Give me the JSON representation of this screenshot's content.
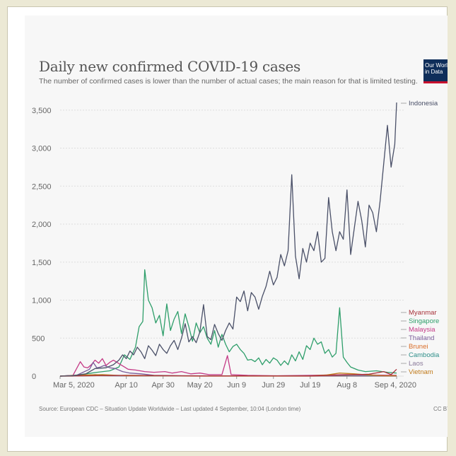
{
  "logo_text": [
    "Our World",
    "in Data"
  ],
  "source_text": "Source: European CDC – Situation Update Worldwide – Last updated 4 September, 10:04 (London time)",
  "license_text": "CC BY",
  "colors": {
    "page_background": "#ece9d5",
    "chart_background": "#f7f7f7",
    "gridline": "#dddddd",
    "logo_background": "#0f2e5a",
    "logo_underline": "#c8102e"
  },
  "chart_data": {
    "type": "line",
    "title": "Daily new confirmed COVID-19 cases",
    "subtitle": "The number of confirmed cases is lower than the number of actual cases; the main reason for that is limited testing.",
    "xlabel": "",
    "ylabel": "",
    "x_range": [
      "2020-03-05",
      "2020-09-04"
    ],
    "ylim": [
      0,
      3600
    ],
    "y_ticks": [
      0,
      500,
      1000,
      1500,
      2000,
      2500,
      3000,
      3500
    ],
    "y_tick_labels": [
      "0",
      "500",
      "1,000",
      "1,500",
      "2,000",
      "2,500",
      "3,000",
      "3,500"
    ],
    "x_ticks": [
      "2020-03-05",
      "2020-04-10",
      "2020-04-30",
      "2020-05-20",
      "2020-06-09",
      "2020-06-29",
      "2020-07-19",
      "2020-08-08",
      "2020-09-04"
    ],
    "x_tick_labels": [
      "Mar 5, 2020",
      "Apr 10",
      "Apr 30",
      "May 20",
      "Jun 9",
      "Jun 29",
      "Jul 19",
      "Aug 8",
      "Sep 4, 2020"
    ],
    "grid": true,
    "legend": "right, labels at line ends",
    "series": [
      {
        "name": "Indonesia",
        "color": "#4a5068",
        "points": [
          [
            "2020-03-05",
            0
          ],
          [
            "2020-03-12",
            5
          ],
          [
            "2020-03-19",
            30
          ],
          [
            "2020-03-24",
            100
          ],
          [
            "2020-03-30",
            110
          ],
          [
            "2020-04-03",
            150
          ],
          [
            "2020-04-06",
            210
          ],
          [
            "2020-04-08",
            280
          ],
          [
            "2020-04-10",
            230
          ],
          [
            "2020-04-12",
            330
          ],
          [
            "2020-04-14",
            280
          ],
          [
            "2020-04-16",
            380
          ],
          [
            "2020-04-18",
            320
          ],
          [
            "2020-04-20",
            230
          ],
          [
            "2020-04-22",
            400
          ],
          [
            "2020-04-24",
            340
          ],
          [
            "2020-04-26",
            270
          ],
          [
            "2020-04-28",
            420
          ],
          [
            "2020-04-30",
            350
          ],
          [
            "2020-05-02",
            300
          ],
          [
            "2020-05-04",
            400
          ],
          [
            "2020-05-06",
            470
          ],
          [
            "2020-05-08",
            350
          ],
          [
            "2020-05-10",
            500
          ],
          [
            "2020-05-12",
            690
          ],
          [
            "2020-05-14",
            450
          ],
          [
            "2020-05-16",
            520
          ],
          [
            "2020-05-18",
            440
          ],
          [
            "2020-05-20",
            580
          ],
          [
            "2020-05-22",
            940
          ],
          [
            "2020-05-24",
            520
          ],
          [
            "2020-05-26",
            480
          ],
          [
            "2020-05-28",
            680
          ],
          [
            "2020-05-30",
            560
          ],
          [
            "2020-06-01",
            470
          ],
          [
            "2020-06-03",
            600
          ],
          [
            "2020-06-05",
            700
          ],
          [
            "2020-06-07",
            620
          ],
          [
            "2020-06-09",
            1040
          ],
          [
            "2020-06-11",
            980
          ],
          [
            "2020-06-13",
            1120
          ],
          [
            "2020-06-15",
            860
          ],
          [
            "2020-06-17",
            1100
          ],
          [
            "2020-06-19",
            1040
          ],
          [
            "2020-06-21",
            880
          ],
          [
            "2020-06-23",
            1050
          ],
          [
            "2020-06-25",
            1180
          ],
          [
            "2020-06-27",
            1380
          ],
          [
            "2020-06-29",
            1200
          ],
          [
            "2020-07-01",
            1300
          ],
          [
            "2020-07-03",
            1600
          ],
          [
            "2020-07-05",
            1450
          ],
          [
            "2020-07-07",
            1650
          ],
          [
            "2020-07-09",
            2650
          ],
          [
            "2020-07-11",
            1580
          ],
          [
            "2020-07-13",
            1280
          ],
          [
            "2020-07-15",
            1680
          ],
          [
            "2020-07-17",
            1500
          ],
          [
            "2020-07-19",
            1750
          ],
          [
            "2020-07-21",
            1650
          ],
          [
            "2020-07-23",
            1900
          ],
          [
            "2020-07-25",
            1500
          ],
          [
            "2020-07-27",
            1550
          ],
          [
            "2020-07-29",
            2350
          ],
          [
            "2020-07-31",
            1900
          ],
          [
            "2020-08-02",
            1650
          ],
          [
            "2020-08-04",
            1900
          ],
          [
            "2020-08-06",
            1800
          ],
          [
            "2020-08-08",
            2450
          ],
          [
            "2020-08-10",
            1600
          ],
          [
            "2020-08-12",
            1950
          ],
          [
            "2020-08-14",
            2300
          ],
          [
            "2020-08-16",
            2050
          ],
          [
            "2020-08-18",
            1700
          ],
          [
            "2020-08-20",
            2250
          ],
          [
            "2020-08-22",
            2150
          ],
          [
            "2020-08-24",
            1900
          ],
          [
            "2020-08-26",
            2300
          ],
          [
            "2020-08-28",
            2800
          ],
          [
            "2020-08-30",
            3300
          ],
          [
            "2020-09-01",
            2750
          ],
          [
            "2020-09-03",
            3050
          ],
          [
            "2020-09-04",
            3600
          ]
        ]
      },
      {
        "name": "Myanmar",
        "color": "#a8323a",
        "points": [
          [
            "2020-03-05",
            0
          ],
          [
            "2020-04-10",
            10
          ],
          [
            "2020-05-20",
            3
          ],
          [
            "2020-07-19",
            2
          ],
          [
            "2020-08-20",
            25
          ],
          [
            "2020-08-28",
            60
          ],
          [
            "2020-09-01",
            20
          ],
          [
            "2020-09-04",
            90
          ]
        ]
      },
      {
        "name": "Singapore",
        "color": "#2e9e6a",
        "points": [
          [
            "2020-03-05",
            0
          ],
          [
            "2020-03-15",
            15
          ],
          [
            "2020-03-25",
            50
          ],
          [
            "2020-04-01",
            70
          ],
          [
            "2020-04-06",
            120
          ],
          [
            "2020-04-09",
            280
          ],
          [
            "2020-04-12",
            220
          ],
          [
            "2020-04-15",
            380
          ],
          [
            "2020-04-17",
            650
          ],
          [
            "2020-04-19",
            720
          ],
          [
            "2020-04-20",
            1400
          ],
          [
            "2020-04-22",
            1000
          ],
          [
            "2020-04-24",
            900
          ],
          [
            "2020-04-26",
            700
          ],
          [
            "2020-04-28",
            800
          ],
          [
            "2020-04-30",
            530
          ],
          [
            "2020-05-02",
            950
          ],
          [
            "2020-05-04",
            600
          ],
          [
            "2020-05-06",
            750
          ],
          [
            "2020-05-08",
            850
          ],
          [
            "2020-05-10",
            560
          ],
          [
            "2020-05-12",
            820
          ],
          [
            "2020-05-14",
            650
          ],
          [
            "2020-05-16",
            460
          ],
          [
            "2020-05-18",
            700
          ],
          [
            "2020-05-20",
            570
          ],
          [
            "2020-05-22",
            650
          ],
          [
            "2020-05-24",
            500
          ],
          [
            "2020-05-26",
            420
          ],
          [
            "2020-05-28",
            600
          ],
          [
            "2020-05-30",
            380
          ],
          [
            "2020-06-01",
            550
          ],
          [
            "2020-06-03",
            420
          ],
          [
            "2020-06-05",
            320
          ],
          [
            "2020-06-07",
            390
          ],
          [
            "2020-06-09",
            420
          ],
          [
            "2020-06-11",
            350
          ],
          [
            "2020-06-13",
            300
          ],
          [
            "2020-06-15",
            210
          ],
          [
            "2020-06-17",
            220
          ],
          [
            "2020-06-19",
            190
          ],
          [
            "2020-06-21",
            240
          ],
          [
            "2020-06-23",
            150
          ],
          [
            "2020-06-25",
            220
          ],
          [
            "2020-06-27",
            170
          ],
          [
            "2020-06-29",
            240
          ],
          [
            "2020-07-01",
            210
          ],
          [
            "2020-07-03",
            140
          ],
          [
            "2020-07-05",
            200
          ],
          [
            "2020-07-07",
            150
          ],
          [
            "2020-07-09",
            280
          ],
          [
            "2020-07-11",
            200
          ],
          [
            "2020-07-13",
            320
          ],
          [
            "2020-07-15",
            220
          ],
          [
            "2020-07-17",
            400
          ],
          [
            "2020-07-19",
            350
          ],
          [
            "2020-07-21",
            500
          ],
          [
            "2020-07-23",
            420
          ],
          [
            "2020-07-25",
            450
          ],
          [
            "2020-07-27",
            300
          ],
          [
            "2020-07-29",
            350
          ],
          [
            "2020-07-31",
            250
          ],
          [
            "2020-08-02",
            300
          ],
          [
            "2020-08-04",
            900
          ],
          [
            "2020-08-06",
            250
          ],
          [
            "2020-08-08",
            180
          ],
          [
            "2020-08-10",
            120
          ],
          [
            "2020-08-14",
            80
          ],
          [
            "2020-08-18",
            60
          ],
          [
            "2020-08-24",
            70
          ],
          [
            "2020-08-30",
            50
          ],
          [
            "2020-09-04",
            40
          ]
        ]
      },
      {
        "name": "Malaysia",
        "color": "#c43a86",
        "points": [
          [
            "2020-03-05",
            0
          ],
          [
            "2020-03-12",
            10
          ],
          [
            "2020-03-16",
            190
          ],
          [
            "2020-03-18",
            120
          ],
          [
            "2020-03-20",
            110
          ],
          [
            "2020-03-22",
            150
          ],
          [
            "2020-03-24",
            210
          ],
          [
            "2020-03-26",
            170
          ],
          [
            "2020-03-28",
            230
          ],
          [
            "2020-03-30",
            140
          ],
          [
            "2020-04-01",
            180
          ],
          [
            "2020-04-03",
            210
          ],
          [
            "2020-04-05",
            180
          ],
          [
            "2020-04-07",
            150
          ],
          [
            "2020-04-09",
            120
          ],
          [
            "2020-04-11",
            90
          ],
          [
            "2020-04-15",
            80
          ],
          [
            "2020-04-20",
            60
          ],
          [
            "2020-04-25",
            50
          ],
          [
            "2020-05-01",
            60
          ],
          [
            "2020-05-05",
            40
          ],
          [
            "2020-05-10",
            60
          ],
          [
            "2020-05-15",
            30
          ],
          [
            "2020-05-20",
            40
          ],
          [
            "2020-05-25",
            20
          ],
          [
            "2020-06-01",
            20
          ],
          [
            "2020-06-04",
            270
          ],
          [
            "2020-06-06",
            20
          ],
          [
            "2020-06-15",
            10
          ],
          [
            "2020-07-01",
            5
          ],
          [
            "2020-07-19",
            10
          ],
          [
            "2020-08-08",
            20
          ],
          [
            "2020-08-20",
            15
          ],
          [
            "2020-09-04",
            10
          ]
        ]
      },
      {
        "name": "Thailand",
        "color": "#7a5c9a",
        "points": [
          [
            "2020-03-05",
            0
          ],
          [
            "2020-03-14",
            10
          ],
          [
            "2020-03-21",
            90
          ],
          [
            "2020-03-23",
            180
          ],
          [
            "2020-03-25",
            110
          ],
          [
            "2020-03-27",
            120
          ],
          [
            "2020-03-29",
            140
          ],
          [
            "2020-04-01",
            110
          ],
          [
            "2020-04-04",
            100
          ],
          [
            "2020-04-08",
            60
          ],
          [
            "2020-04-12",
            40
          ],
          [
            "2020-04-18",
            30
          ],
          [
            "2020-04-25",
            10
          ],
          [
            "2020-05-10",
            5
          ],
          [
            "2020-06-09",
            3
          ],
          [
            "2020-07-19",
            5
          ],
          [
            "2020-09-04",
            5
          ]
        ]
      },
      {
        "name": "Brunei",
        "color": "#d96c27",
        "points": [
          [
            "2020-03-05",
            0
          ],
          [
            "2020-03-12",
            0
          ],
          [
            "2020-03-16",
            20
          ],
          [
            "2020-03-22",
            10
          ],
          [
            "2020-04-01",
            5
          ],
          [
            "2020-05-20",
            0
          ],
          [
            "2020-09-04",
            0
          ]
        ]
      },
      {
        "name": "Cambodia",
        "color": "#2f8f8a",
        "points": [
          [
            "2020-03-05",
            0
          ],
          [
            "2020-03-18",
            10
          ],
          [
            "2020-03-24",
            20
          ],
          [
            "2020-03-30",
            10
          ],
          [
            "2020-04-10",
            3
          ],
          [
            "2020-06-09",
            2
          ],
          [
            "2020-09-04",
            2
          ]
        ]
      },
      {
        "name": "Laos",
        "color": "#8a7a9a",
        "points": [
          [
            "2020-03-05",
            0
          ],
          [
            "2020-03-25",
            5
          ],
          [
            "2020-04-10",
            2
          ],
          [
            "2020-09-04",
            0
          ]
        ]
      },
      {
        "name": "Vietnam",
        "color": "#c07a1a",
        "points": [
          [
            "2020-03-05",
            0
          ],
          [
            "2020-03-20",
            15
          ],
          [
            "2020-03-28",
            20
          ],
          [
            "2020-04-10",
            5
          ],
          [
            "2020-05-20",
            3
          ],
          [
            "2020-07-19",
            2
          ],
          [
            "2020-07-28",
            15
          ],
          [
            "2020-08-04",
            40
          ],
          [
            "2020-08-12",
            30
          ],
          [
            "2020-08-20",
            15
          ],
          [
            "2020-08-28",
            5
          ],
          [
            "2020-09-04",
            5
          ]
        ]
      }
    ]
  }
}
